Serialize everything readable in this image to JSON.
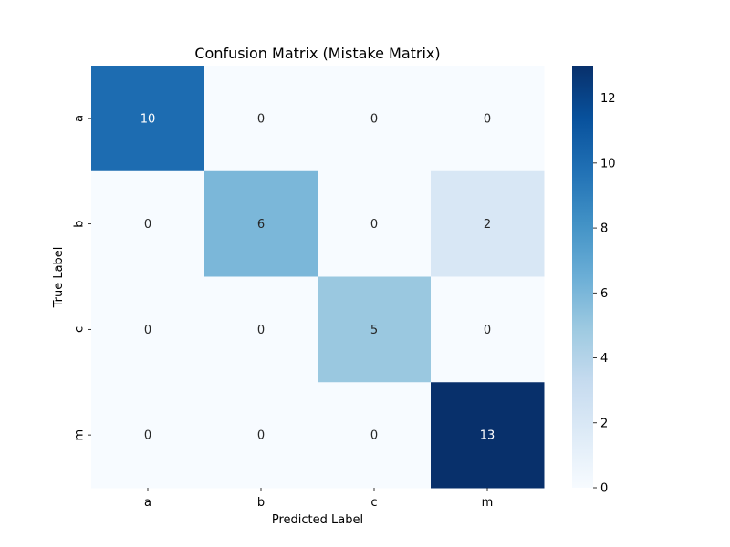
{
  "chart_data": {
    "type": "heatmap",
    "title": "Confusion Matrix (Mistake Matrix)",
    "xlabel": "Predicted Label",
    "ylabel": "True Label",
    "x_categories": [
      "a",
      "b",
      "c",
      "m"
    ],
    "y_categories": [
      "a",
      "b",
      "c",
      "m"
    ],
    "values": [
      [
        10,
        0,
        0,
        0
      ],
      [
        0,
        6,
        0,
        2
      ],
      [
        0,
        0,
        5,
        0
      ],
      [
        0,
        0,
        0,
        13
      ]
    ],
    "colormap": "Blues",
    "color_range": [
      0,
      13
    ],
    "colorbar_ticks": [
      0,
      2,
      4,
      6,
      8,
      10,
      12
    ],
    "grid": false
  }
}
